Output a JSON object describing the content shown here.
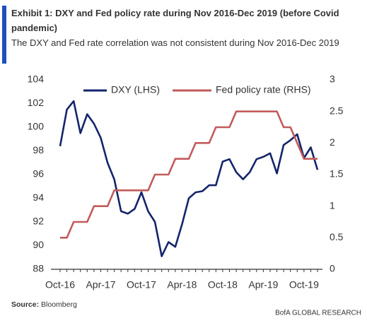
{
  "chart_data": {
    "type": "line",
    "title": "Exhibit 1: DXY and Fed policy rate during Nov 2016-Dec 2019 (before Covid pandemic)",
    "subtitle": "The DXY and Fed rate correlation was not consistent during Nov 2016-Dec 2019",
    "source_label": "Source:",
    "source": "Bloomberg",
    "footer": "BofA GLOBAL RESEARCH",
    "categories": [
      "Oct-16",
      null,
      null,
      null,
      null,
      null,
      "Apr-17",
      null,
      null,
      null,
      null,
      null,
      "Oct-17",
      null,
      null,
      null,
      null,
      null,
      "Apr-18",
      null,
      null,
      null,
      null,
      null,
      "Oct-18",
      null,
      null,
      null,
      null,
      null,
      "Apr-19",
      null,
      null,
      null,
      null,
      null,
      "Oct-19",
      null,
      null
    ],
    "series": [
      {
        "name": "DXY (LHS)",
        "color": "#14256b",
        "values": [
          98.4,
          101.5,
          102.2,
          99.5,
          101.1,
          100.3,
          99.1,
          97.0,
          95.6,
          92.9,
          92.7,
          93.1,
          94.5,
          92.9,
          92.0,
          89.1,
          90.3,
          89.9,
          91.8,
          94.0,
          94.5,
          94.6,
          95.1,
          95.1,
          97.1,
          97.3,
          96.2,
          95.6,
          96.2,
          97.3,
          97.5,
          97.8,
          96.1,
          98.5,
          98.9,
          99.4,
          97.4,
          98.3,
          96.4
        ]
      },
      {
        "name": "Fed policy rate (RHS)",
        "color": "#c25b5b",
        "axis": "y2",
        "values": [
          0.5,
          0.5,
          0.75,
          0.75,
          0.75,
          1.0,
          1.0,
          1.0,
          1.25,
          1.25,
          1.25,
          1.25,
          1.25,
          1.25,
          1.5,
          1.5,
          1.5,
          1.75,
          1.75,
          1.75,
          2.0,
          2.0,
          2.0,
          2.25,
          2.25,
          2.25,
          2.5,
          2.5,
          2.5,
          2.5,
          2.5,
          2.5,
          2.5,
          2.25,
          2.25,
          2.0,
          1.75,
          1.75,
          1.75
        ]
      }
    ],
    "ylim": [
      88,
      104
    ],
    "yticks": [
      88,
      90,
      92,
      94,
      96,
      98,
      100,
      102,
      104
    ],
    "y2lim": [
      0,
      3
    ],
    "y2ticks": [
      0,
      0.5,
      1,
      1.5,
      2,
      2.5,
      3
    ],
    "grid": false,
    "legend": "top"
  }
}
